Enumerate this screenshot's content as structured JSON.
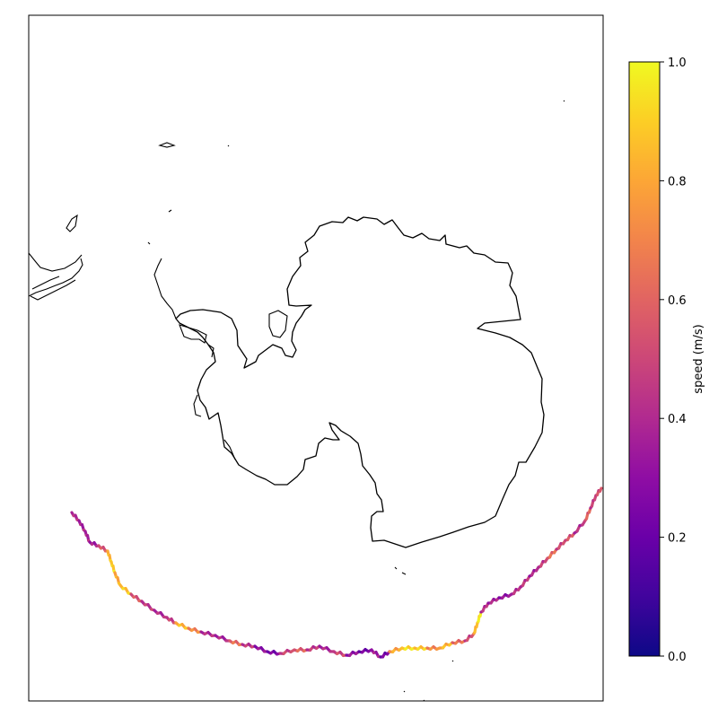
{
  "colorbar": {
    "label": "speed (m/s)",
    "colormap": "plasma",
    "min": 0.0,
    "max": 1.0,
    "ticks": [
      "0.0",
      "0.2",
      "0.4",
      "0.6",
      "0.8",
      "1.0"
    ]
  },
  "map": {
    "projection": "south-polar-stereographic",
    "coastline_color": "#000000",
    "frame_color": "#000000"
  },
  "track": {
    "colormap": "plasma",
    "description_value_range": [
      0.0,
      1.0
    ]
  }
}
